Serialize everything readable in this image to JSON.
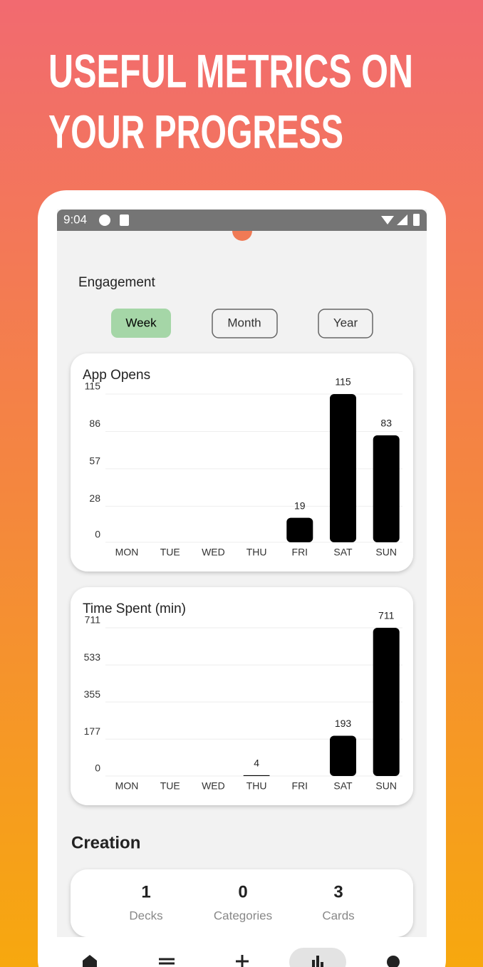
{
  "header": {
    "title_lines": [
      "USEFUL METRICS ON",
      "YOUR PROGRESS"
    ]
  },
  "status_bar": {
    "time": "9:04"
  },
  "engagement": {
    "title": "Engagement",
    "tabs": [
      "Week",
      "Month",
      "Year"
    ]
  },
  "charts": [
    {
      "type": "bar",
      "title": "App Opens",
      "categories": [
        "MON",
        "TUE",
        "WED",
        "THU",
        "FRI",
        "SAT",
        "SUN"
      ],
      "values": [
        0,
        0,
        0,
        0,
        19,
        115,
        83
      ],
      "ylim": [
        0,
        115
      ],
      "yticks": [
        0,
        28,
        57,
        86,
        115
      ],
      "color": "#000000",
      "grid": true
    },
    {
      "type": "bar",
      "title": "Time Spent (min)",
      "categories": [
        "MON",
        "TUE",
        "WED",
        "THU",
        "FRI",
        "SAT",
        "SUN"
      ],
      "values": [
        0,
        0,
        0,
        4,
        0,
        193,
        711
      ],
      "ylim": [
        0,
        711
      ],
      "yticks": [
        0,
        177,
        355,
        533,
        711
      ],
      "color": "#000000",
      "grid": true
    }
  ],
  "creation": {
    "title": "Creation",
    "stats": [
      {
        "value": 1,
        "label": "Decks"
      },
      {
        "value": 0,
        "label": "Categories"
      },
      {
        "value": 3,
        "label": "Cards"
      }
    ]
  }
}
